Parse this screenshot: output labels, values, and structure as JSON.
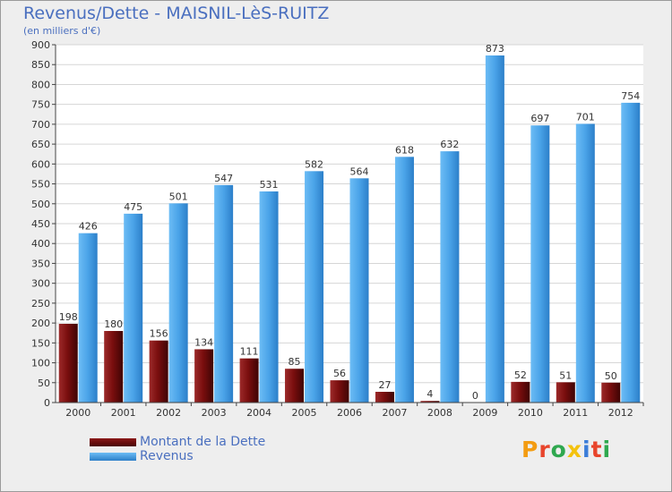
{
  "title": "Revenus/Dette - MAISNIL-LèS-RUITZ",
  "subtitle": "(en milliers d'€)",
  "logo_text": "Proxiti",
  "colors": {
    "dette": "#7a0e0e",
    "revenus": "#4aa3e8",
    "text": "#4a6fbf"
  },
  "chart_data": {
    "type": "bar",
    "title": "Revenus/Dette - MAISNIL-LèS-RUITZ",
    "ylabel": "(en milliers d'€)",
    "categories": [
      "2000",
      "2001",
      "2002",
      "2003",
      "2004",
      "2005",
      "2006",
      "2007",
      "2008",
      "2009",
      "2010",
      "2011",
      "2012"
    ],
    "series": [
      {
        "name": "Montant de la Dette",
        "values": [
          198,
          180,
          156,
          134,
          111,
          85,
          56,
          27,
          4,
          0,
          52,
          51,
          50
        ]
      },
      {
        "name": "Revenus",
        "values": [
          426,
          475,
          501,
          547,
          531,
          582,
          564,
          618,
          632,
          873,
          697,
          701,
          754
        ]
      }
    ],
    "ylim": [
      0,
      900
    ],
    "yticks": [
      0,
      50,
      100,
      150,
      200,
      250,
      300,
      350,
      400,
      450,
      500,
      550,
      600,
      650,
      700,
      750,
      800,
      850,
      900
    ],
    "grid": true,
    "legend": "bottom-left"
  }
}
